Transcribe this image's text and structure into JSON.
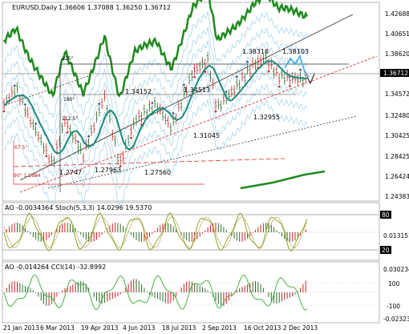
{
  "main": {
    "title": "EURUSD,Daily",
    "ohlc": "1.36606 1.37088 1.36250 1.36712",
    "prices": [
      "1.42688",
      "1.40651",
      "1.38620",
      "1.36712",
      "1.34572",
      "1.32480",
      "1.30425",
      "1.28425",
      "1.26424",
      "1.24383"
    ],
    "annotations": [
      "1.38318",
      "1.38103",
      "1.34152",
      "1.34513",
      "1.31045",
      "1.32955",
      "1.2747",
      "1.27963",
      "1.27560"
    ],
    "gann_levels": [
      "225°",
      "180°",
      "112.5°",
      "67.5°",
      "90° 1.2884"
    ],
    "colors": {
      "bull": "#2b6a2b",
      "bear": "#cc2222",
      "ma": "#1a8a7a",
      "band": "#9fd0e8"
    }
  },
  "ao_stoch": {
    "label": "AO -0.0034364  Stoch(5,3,3) 14.0296 19.5370",
    "scale": [
      "80",
      "20"
    ],
    "right_vals": [
      "0.013157"
    ]
  },
  "ao_cci": {
    "label": "AO -0.014264  CCI(14) -32.8992",
    "scale": [
      "0.030234",
      "100",
      "-100",
      "-0.023234"
    ]
  },
  "time_axis": [
    "21 Jan 2013",
    "6 Mar 2013",
    "19 Apr 2013",
    "4 Jun 2013",
    "18 Jul 2013",
    "2 Sep 2013",
    "16 Oct 2013",
    "2 Dec 2013"
  ]
}
